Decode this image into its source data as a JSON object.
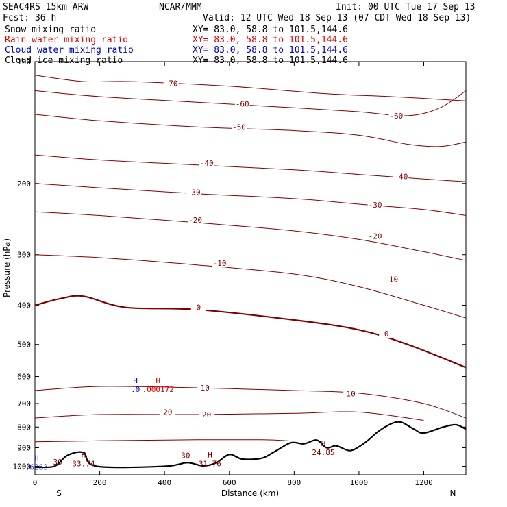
{
  "header": {
    "model": "SEAC4RS 15km ARW",
    "org": "NCAR/MMM",
    "init": "Init: 00 UTC Tue 17 Sep 13",
    "fcst": "Fcst:    36 h",
    "valid": "Valid: 12 UTC Wed 18 Sep 13 (07 CDT Wed 18 Sep 13)"
  },
  "legend": [
    {
      "label": "Snow mixing ratio",
      "xy": "XY=  83.0, 58.8 to 101.5,144.6",
      "color": "#000000"
    },
    {
      "label": "Rain water mixing ratio",
      "xy": "XY=  83.0, 58.8 to 101.5,144.6",
      "color": "#e00000"
    },
    {
      "label": "Cloud water mixing ratio",
      "xy": "XY=  83.0, 58.8 to 101.5,144.6",
      "color": "#0000c8"
    },
    {
      "label": "Cloud ice mixing ratio",
      "xy": "XY=  83.0, 58.8 to 101.5,144.6",
      "color": "#000000"
    }
  ],
  "chart_data": {
    "type": "line",
    "title": "",
    "xlabel": "Distance (km)",
    "ylabel": "Pressure (hPa)",
    "xlim": [
      0,
      1330
    ],
    "ylim": [
      100,
      1050
    ],
    "y_scale": "log-pressure (inverted)",
    "xticks": [
      "0",
      "200",
      "400",
      "600",
      "800",
      "1000",
      "1200"
    ],
    "yticks": [
      "100",
      "200",
      "300",
      "400",
      "500",
      "600",
      "700",
      "800",
      "900",
      "1000"
    ],
    "end_labels": {
      "left": "S",
      "right": "N"
    },
    "temperature_color": "#800000",
    "terrain_color": "#000000",
    "temperature_isotherms": [
      {
        "label": "-70",
        "points": [
          [
            0,
            108
          ],
          [
            150,
            112
          ],
          [
            300,
            112
          ],
          [
            600,
            115
          ],
          [
            900,
            120
          ],
          [
            1100,
            122
          ],
          [
            1330,
            125
          ]
        ],
        "labels": [
          [
            420,
            113
          ]
        ]
      },
      {
        "label": "-60",
        "points": [
          [
            0,
            118
          ],
          [
            200,
            122
          ],
          [
            500,
            126
          ],
          [
            800,
            130
          ],
          [
            1000,
            133
          ],
          [
            1150,
            136
          ],
          [
            1250,
            130
          ],
          [
            1330,
            118
          ]
        ],
        "labels": [
          [
            640,
            127
          ],
          [
            1115,
            136
          ]
        ]
      },
      {
        "label": "-50",
        "points": [
          [
            0,
            135
          ],
          [
            200,
            140
          ],
          [
            500,
            145
          ],
          [
            800,
            148
          ],
          [
            1000,
            152
          ],
          [
            1150,
            160
          ],
          [
            1250,
            162
          ],
          [
            1330,
            158
          ]
        ],
        "labels": [
          [
            630,
            145
          ]
        ]
      },
      {
        "label": "-40",
        "points": [
          [
            0,
            170
          ],
          [
            200,
            175
          ],
          [
            500,
            180
          ],
          [
            800,
            185
          ],
          [
            1000,
            190
          ],
          [
            1200,
            195
          ],
          [
            1330,
            198
          ]
        ],
        "labels": [
          [
            530,
            178
          ],
          [
            1130,
            192
          ]
        ]
      },
      {
        "label": "-30",
        "points": [
          [
            0,
            200
          ],
          [
            200,
            205
          ],
          [
            500,
            212
          ],
          [
            800,
            218
          ],
          [
            1000,
            225
          ],
          [
            1200,
            232
          ],
          [
            1330,
            240
          ]
        ],
        "labels": [
          [
            490,
            210
          ],
          [
            1050,
            226
          ]
        ]
      },
      {
        "label": "-20",
        "points": [
          [
            0,
            235
          ],
          [
            200,
            240
          ],
          [
            500,
            250
          ],
          [
            800,
            262
          ],
          [
            1000,
            275
          ],
          [
            1200,
            295
          ],
          [
            1330,
            310
          ]
        ],
        "labels": [
          [
            495,
            246
          ],
          [
            1050,
            270
          ]
        ]
      },
      {
        "label": "-10",
        "points": [
          [
            0,
            300
          ],
          [
            200,
            305
          ],
          [
            500,
            318
          ],
          [
            800,
            335
          ],
          [
            1000,
            360
          ],
          [
            1200,
            400
          ],
          [
            1330,
            430
          ]
        ],
        "labels": [
          [
            570,
            315
          ],
          [
            1100,
            345
          ]
        ]
      },
      {
        "label": "0",
        "points": [
          [
            0,
            400
          ],
          [
            80,
            385
          ],
          [
            150,
            380
          ],
          [
            280,
            405
          ],
          [
            500,
            410
          ],
          [
            800,
            435
          ],
          [
            1000,
            460
          ],
          [
            1150,
            500
          ],
          [
            1330,
            570
          ]
        ],
        "labels": [
          [
            505,
            405
          ],
          [
            1085,
            470
          ]
        ]
      },
      {
        "label": "10",
        "points": [
          [
            0,
            650
          ],
          [
            200,
            635
          ],
          [
            500,
            640
          ],
          [
            800,
            650
          ],
          [
            1000,
            660
          ],
          [
            1200,
            700
          ],
          [
            1330,
            760
          ]
        ],
        "labels": [
          [
            525,
            640
          ],
          [
            975,
            662
          ]
        ]
      },
      {
        "label": "20",
        "points": [
          [
            0,
            760
          ],
          [
            200,
            745
          ],
          [
            500,
            745
          ],
          [
            800,
            740
          ],
          [
            1000,
            735
          ],
          [
            1200,
            770
          ]
        ],
        "labels": [
          [
            410,
            735
          ],
          [
            530,
            745
          ]
        ]
      },
      {
        "label": "30",
        "points": [
          [
            0,
            870
          ],
          [
            200,
            865
          ],
          [
            500,
            860
          ],
          [
            700,
            860
          ],
          [
            780,
            865
          ]
        ],
        "labels": [
          [
            465,
            940
          ],
          [
            70,
            975
          ]
        ]
      }
    ],
    "terrain_points": [
      [
        0,
        1005
      ],
      [
        60,
        1000
      ],
      [
        100,
        940
      ],
      [
        150,
        925
      ],
      [
        190,
        1000
      ],
      [
        400,
        1000
      ],
      [
        470,
        980
      ],
      [
        520,
        998
      ],
      [
        560,
        980
      ],
      [
        600,
        935
      ],
      [
        640,
        960
      ],
      [
        700,
        955
      ],
      [
        740,
        920
      ],
      [
        790,
        875
      ],
      [
        830,
        880
      ],
      [
        870,
        862
      ],
      [
        900,
        900
      ],
      [
        930,
        890
      ],
      [
        970,
        915
      ],
      [
        1000,
        895
      ],
      [
        1030,
        860
      ],
      [
        1060,
        820
      ],
      [
        1100,
        785
      ],
      [
        1130,
        778
      ],
      [
        1170,
        810
      ],
      [
        1200,
        828
      ],
      [
        1260,
        800
      ],
      [
        1300,
        790
      ],
      [
        1330,
        810
      ]
    ],
    "rain_extrema": [
      {
        "marker": "H",
        "value": ".000172",
        "x": 380,
        "p": 632
      }
    ],
    "cloud_water_extrema": [
      {
        "marker": "H",
        "value": ".0",
        "x": 310,
        "p": 632
      },
      {
        "marker": "H",
        "value": ".6263",
        "x": 5,
        "p": 985
      }
    ],
    "temperature_extrema": [
      {
        "marker": "H",
        "value": "33.74",
        "x": 150,
        "p": 965
      },
      {
        "marker": "H",
        "value": "31.76",
        "x": 540,
        "p": 965
      },
      {
        "marker": "H",
        "value": "24.85",
        "x": 890,
        "p": 905
      }
    ]
  }
}
